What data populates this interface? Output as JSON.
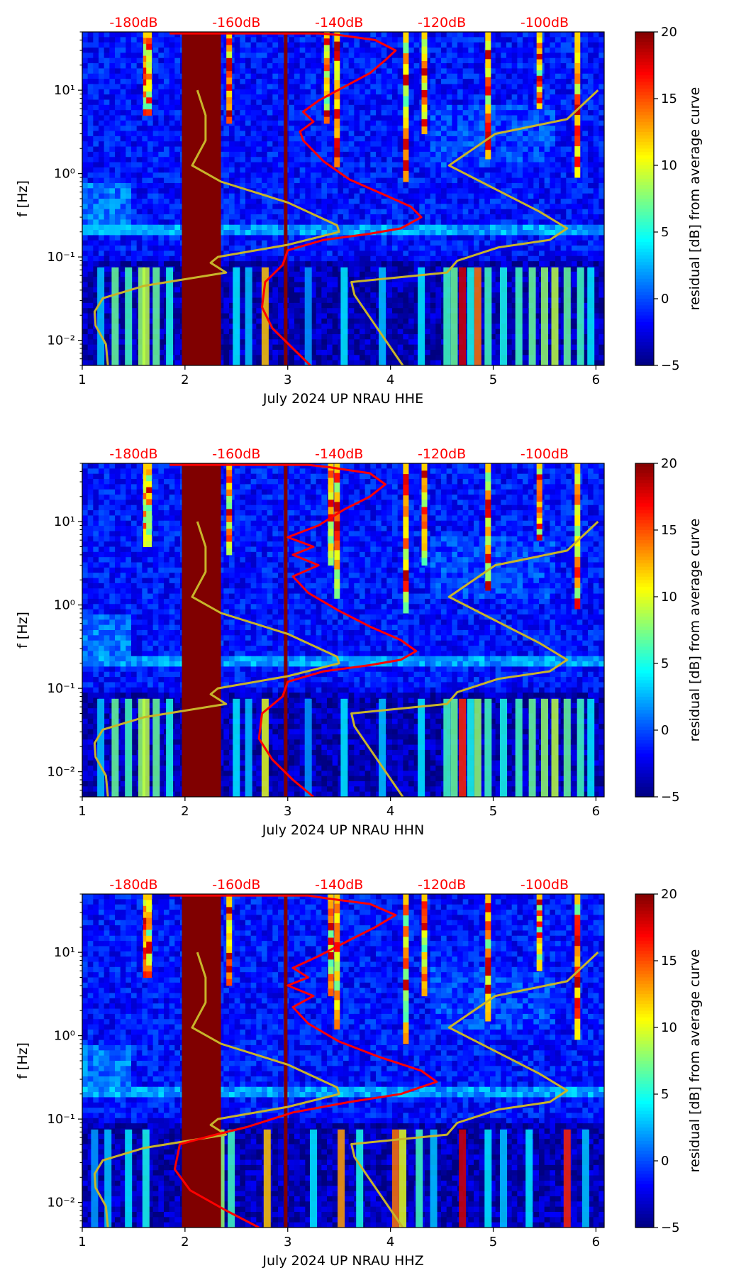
{
  "figure": {
    "colors": {
      "red_curve": "#ff0000",
      "yellow_curve": "#c8b42a",
      "dark_band": "#800000",
      "db_labels": "#ff0000"
    },
    "colormap": "jet"
  },
  "chart_data": [
    {
      "type": "heatmap",
      "xlabel": "July 2024 UP NRAU  HHE",
      "ylabel": "f [Hz]",
      "xlim": [
        1,
        6.08
      ],
      "ylim": [
        0.005,
        50
      ],
      "yscale": "log",
      "x_ticks": [
        "1",
        "2",
        "3",
        "4",
        "5",
        "6"
      ],
      "y_ticks": [
        "10⁻²",
        "10⁻¹",
        "10⁰",
        "10¹"
      ],
      "top_axis_labels": [
        "-180dB",
        "-160dB",
        "-140dB",
        "-120dB",
        "-100dB"
      ],
      "colorbar": {
        "label": "residual [dB] from average curve",
        "range": [
          -5,
          20
        ],
        "ticks": [
          "−5",
          "0",
          "5",
          "10",
          "15",
          "20"
        ]
      },
      "dark_band": [
        1.97,
        2.35
      ],
      "vertical_line_x": 2.98,
      "red_curve": {
        "x": [
          3.22,
          3.05,
          2.85,
          2.75,
          2.78,
          2.95,
          3.0,
          3.35,
          3.8,
          4.1,
          4.3,
          4.2,
          3.95,
          3.6,
          3.35,
          3.15,
          3.12,
          3.25,
          3.15,
          3.3,
          3.55,
          3.8,
          3.95,
          4.05,
          3.85,
          3.5,
          3.3,
          2.95
        ],
        "y": [
          0.005,
          0.008,
          0.014,
          0.025,
          0.05,
          0.08,
          0.12,
          0.16,
          0.19,
          0.22,
          0.3,
          0.4,
          0.55,
          0.85,
          1.4,
          2.5,
          3.2,
          4.2,
          5.5,
          7.5,
          11,
          16,
          23,
          30,
          40,
          46,
          48,
          48
        ]
      },
      "yellow_curve_left": {
        "x": [
          1.25,
          1.23,
          1.13,
          1.12,
          1.2,
          1.6,
          2.4,
          2.25,
          2.32,
          3.0,
          3.5,
          3.48,
          3.0,
          2.35,
          2.07,
          2.2,
          2.2,
          2.12
        ],
        "y": [
          0.005,
          0.009,
          0.015,
          0.022,
          0.032,
          0.045,
          0.065,
          0.085,
          0.1,
          0.14,
          0.2,
          0.24,
          0.45,
          0.8,
          1.25,
          2.5,
          5,
          10
        ]
      },
      "yellow_curve_right": {
        "x": [
          4.12,
          3.65,
          3.62,
          4.55,
          4.65,
          5.05,
          5.55,
          5.72,
          5.45,
          4.57,
          5.02,
          5.72,
          6.02
        ],
        "y": [
          0.005,
          0.035,
          0.05,
          0.065,
          0.09,
          0.13,
          0.16,
          0.22,
          0.35,
          1.25,
          3,
          4.5,
          10
        ]
      },
      "bright_columns": [
        {
          "x": 1.62,
          "top": 50,
          "bottom": 5
        },
        {
          "x": 1.65,
          "top": 50,
          "bottom": 5
        },
        {
          "x": 2.43,
          "top": 50,
          "bottom": 4
        },
        {
          "x": 3.38,
          "top": 50,
          "bottom": 4
        },
        {
          "x": 3.48,
          "top": 50,
          "bottom": 1.2
        },
        {
          "x": 4.15,
          "top": 50,
          "bottom": 0.8
        },
        {
          "x": 4.33,
          "top": 50,
          "bottom": 3
        },
        {
          "x": 4.95,
          "top": 50,
          "bottom": 1.5
        },
        {
          "x": 5.45,
          "top": 50,
          "bottom": 6
        },
        {
          "x": 5.82,
          "top": 50,
          "bottom": 0.9
        }
      ],
      "low_freq_columns": [
        {
          "x": 1.18,
          "v": 3
        },
        {
          "x": 1.32,
          "v": 7
        },
        {
          "x": 1.45,
          "v": 6
        },
        {
          "x": 1.58,
          "v": 8
        },
        {
          "x": 1.62,
          "v": 9
        },
        {
          "x": 1.72,
          "v": 7
        },
        {
          "x": 1.85,
          "v": 5
        },
        {
          "x": 2.5,
          "v": 4
        },
        {
          "x": 2.62,
          "v": 3
        },
        {
          "x": 2.78,
          "v": 12
        },
        {
          "x": 3.2,
          "v": 2
        },
        {
          "x": 3.55,
          "v": 4
        },
        {
          "x": 3.92,
          "v": 3
        },
        {
          "x": 4.3,
          "v": 4
        },
        {
          "x": 4.55,
          "v": 6
        },
        {
          "x": 4.62,
          "v": 7
        },
        {
          "x": 4.7,
          "v": 18
        },
        {
          "x": 4.78,
          "v": 5
        },
        {
          "x": 4.85,
          "v": 14
        },
        {
          "x": 4.95,
          "v": 6
        },
        {
          "x": 5.1,
          "v": 5
        },
        {
          "x": 5.25,
          "v": 6
        },
        {
          "x": 5.38,
          "v": 7
        },
        {
          "x": 5.5,
          "v": 8
        },
        {
          "x": 5.6,
          "v": 9
        },
        {
          "x": 5.72,
          "v": 7
        },
        {
          "x": 5.85,
          "v": 6
        },
        {
          "x": 5.95,
          "v": 4
        }
      ]
    },
    {
      "type": "heatmap",
      "xlabel": "July 2024 UP NRAU  HHN",
      "ylabel": "f [Hz]",
      "xlim": [
        1,
        6.08
      ],
      "ylim": [
        0.005,
        50
      ],
      "yscale": "log",
      "x_ticks": [
        "1",
        "2",
        "3",
        "4",
        "5",
        "6"
      ],
      "y_ticks": [
        "10⁻²",
        "10⁻¹",
        "10⁰",
        "10¹"
      ],
      "top_axis_labels": [
        "-180dB",
        "-160dB",
        "-140dB",
        "-120dB",
        "-100dB"
      ],
      "colorbar": {
        "label": "residual [dB] from average curve",
        "range": [
          -5,
          20
        ],
        "ticks": [
          "−5",
          "0",
          "5",
          "10",
          "15",
          "20"
        ]
      },
      "dark_band": [
        1.97,
        2.35
      ],
      "vertical_line_x": 2.98,
      "red_curve": {
        "x": [
          3.25,
          3.05,
          2.85,
          2.72,
          2.75,
          2.95,
          3.0,
          3.35,
          3.8,
          4.1,
          4.25,
          4.1,
          3.8,
          3.5,
          3.2,
          3.05,
          3.3,
          3.05,
          3.25,
          3.0,
          3.3,
          3.55,
          3.8,
          3.95,
          3.8,
          3.4,
          3.2,
          2.95
        ],
        "y": [
          0.005,
          0.008,
          0.014,
          0.025,
          0.05,
          0.08,
          0.12,
          0.16,
          0.19,
          0.22,
          0.28,
          0.38,
          0.55,
          0.85,
          1.4,
          2.2,
          3.0,
          4.0,
          5.0,
          6.5,
          9,
          14,
          20,
          28,
          38,
          45,
          48,
          48
        ]
      },
      "yellow_curve_left": {
        "x": [
          1.25,
          1.23,
          1.13,
          1.12,
          1.2,
          1.6,
          2.4,
          2.25,
          2.32,
          3.0,
          3.5,
          3.48,
          3.0,
          2.35,
          2.07,
          2.2,
          2.2,
          2.12
        ],
        "y": [
          0.005,
          0.009,
          0.015,
          0.022,
          0.032,
          0.045,
          0.065,
          0.085,
          0.1,
          0.14,
          0.2,
          0.24,
          0.45,
          0.8,
          1.25,
          2.5,
          5,
          10
        ]
      },
      "yellow_curve_right": {
        "x": [
          4.12,
          3.65,
          3.62,
          4.55,
          4.65,
          5.05,
          5.55,
          5.72,
          5.45,
          4.57,
          5.02,
          5.72,
          6.02
        ],
        "y": [
          0.005,
          0.035,
          0.05,
          0.065,
          0.09,
          0.13,
          0.16,
          0.22,
          0.35,
          1.25,
          3,
          4.5,
          10
        ]
      },
      "bright_columns": [
        {
          "x": 1.62,
          "top": 50,
          "bottom": 5
        },
        {
          "x": 1.65,
          "top": 50,
          "bottom": 5
        },
        {
          "x": 2.43,
          "top": 50,
          "bottom": 4
        },
        {
          "x": 3.42,
          "top": 50,
          "bottom": 3
        },
        {
          "x": 3.48,
          "top": 50,
          "bottom": 1.2
        },
        {
          "x": 4.15,
          "top": 50,
          "bottom": 0.8
        },
        {
          "x": 4.33,
          "top": 50,
          "bottom": 3
        },
        {
          "x": 4.95,
          "top": 50,
          "bottom": 1.5
        },
        {
          "x": 5.45,
          "top": 50,
          "bottom": 6
        },
        {
          "x": 5.82,
          "top": 50,
          "bottom": 0.9
        }
      ],
      "low_freq_columns": [
        {
          "x": 1.18,
          "v": 3
        },
        {
          "x": 1.32,
          "v": 7
        },
        {
          "x": 1.45,
          "v": 6
        },
        {
          "x": 1.58,
          "v": 8
        },
        {
          "x": 1.62,
          "v": 9
        },
        {
          "x": 1.72,
          "v": 7
        },
        {
          "x": 1.85,
          "v": 5
        },
        {
          "x": 2.5,
          "v": 4
        },
        {
          "x": 2.62,
          "v": 3
        },
        {
          "x": 2.78,
          "v": 10
        },
        {
          "x": 3.2,
          "v": 2
        },
        {
          "x": 3.55,
          "v": 4
        },
        {
          "x": 3.92,
          "v": 3
        },
        {
          "x": 4.3,
          "v": 4
        },
        {
          "x": 4.55,
          "v": 6
        },
        {
          "x": 4.62,
          "v": 7
        },
        {
          "x": 4.7,
          "v": 16
        },
        {
          "x": 4.78,
          "v": 5
        },
        {
          "x": 4.85,
          "v": 8
        },
        {
          "x": 4.95,
          "v": 6
        },
        {
          "x": 5.1,
          "v": 5
        },
        {
          "x": 5.25,
          "v": 6
        },
        {
          "x": 5.38,
          "v": 7
        },
        {
          "x": 5.5,
          "v": 8
        },
        {
          "x": 5.6,
          "v": 9
        },
        {
          "x": 5.72,
          "v": 7
        },
        {
          "x": 5.85,
          "v": 6
        },
        {
          "x": 5.95,
          "v": 4
        }
      ]
    },
    {
      "type": "heatmap",
      "xlabel": "July 2024 UP NRAU  HHZ",
      "ylabel": "f [Hz]",
      "xlim": [
        1,
        6.08
      ],
      "ylim": [
        0.005,
        50
      ],
      "yscale": "log",
      "x_ticks": [
        "1",
        "2",
        "3",
        "4",
        "5",
        "6"
      ],
      "y_ticks": [
        "10⁻²",
        "10⁻¹",
        "10⁰",
        "10¹"
      ],
      "top_axis_labels": [
        "-180dB",
        "-160dB",
        "-140dB",
        "-120dB",
        "-100dB"
      ],
      "colorbar": {
        "label": "residual [dB] from average curve",
        "range": [
          -5,
          20
        ],
        "ticks": [
          "−5",
          "0",
          "5",
          "10",
          "15",
          "20"
        ]
      },
      "dark_band": [
        1.97,
        2.35
      ],
      "vertical_line_x": 2.98,
      "red_curve": {
        "x": [
          2.72,
          2.4,
          2.05,
          1.9,
          1.95,
          2.3,
          2.6,
          3.05,
          3.6,
          4.1,
          4.45,
          4.3,
          3.9,
          3.5,
          3.2,
          3.05,
          3.25,
          3.0,
          3.2,
          3.05,
          3.3,
          3.6,
          3.85,
          4.05,
          3.8,
          3.4,
          3.2,
          2.95
        ],
        "y": [
          0.005,
          0.008,
          0.014,
          0.025,
          0.05,
          0.065,
          0.08,
          0.12,
          0.16,
          0.2,
          0.28,
          0.38,
          0.55,
          0.85,
          1.4,
          2.2,
          3.0,
          4.0,
          5.0,
          6.5,
          9,
          14,
          20,
          28,
          38,
          44,
          48,
          48
        ]
      },
      "yellow_curve_left": {
        "x": [
          1.25,
          1.23,
          1.13,
          1.12,
          1.2,
          1.6,
          2.4,
          2.25,
          2.32,
          3.0,
          3.5,
          3.48,
          3.0,
          2.35,
          2.07,
          2.2,
          2.2,
          2.12
        ],
        "y": [
          0.005,
          0.009,
          0.015,
          0.022,
          0.032,
          0.045,
          0.065,
          0.085,
          0.1,
          0.14,
          0.2,
          0.24,
          0.45,
          0.8,
          1.25,
          2.5,
          5,
          10
        ]
      },
      "yellow_curve_right": {
        "x": [
          4.12,
          3.65,
          3.62,
          4.55,
          4.65,
          5.05,
          5.55,
          5.72,
          5.45,
          4.57,
          5.02,
          5.72,
          6.02
        ],
        "y": [
          0.005,
          0.035,
          0.05,
          0.065,
          0.09,
          0.13,
          0.16,
          0.22,
          0.35,
          1.25,
          3,
          4.5,
          10
        ]
      },
      "bright_columns": [
        {
          "x": 1.62,
          "top": 50,
          "bottom": 5
        },
        {
          "x": 1.65,
          "top": 50,
          "bottom": 5
        },
        {
          "x": 2.43,
          "top": 50,
          "bottom": 4
        },
        {
          "x": 3.42,
          "top": 50,
          "bottom": 3
        },
        {
          "x": 3.48,
          "top": 50,
          "bottom": 1.2
        },
        {
          "x": 4.15,
          "top": 50,
          "bottom": 0.8
        },
        {
          "x": 4.33,
          "top": 50,
          "bottom": 3
        },
        {
          "x": 4.95,
          "top": 50,
          "bottom": 1.5
        },
        {
          "x": 5.45,
          "top": 50,
          "bottom": 6
        },
        {
          "x": 5.82,
          "top": 50,
          "bottom": 0.9
        }
      ],
      "low_freq_columns": [
        {
          "x": 1.12,
          "v": 2
        },
        {
          "x": 1.25,
          "v": 3
        },
        {
          "x": 1.45,
          "v": 4
        },
        {
          "x": 1.62,
          "v": 5
        },
        {
          "x": 2.35,
          "v": 8
        },
        {
          "x": 2.45,
          "v": 6
        },
        {
          "x": 2.8,
          "v": 12
        },
        {
          "x": 3.25,
          "v": 4
        },
        {
          "x": 3.52,
          "v": 13
        },
        {
          "x": 3.7,
          "v": 5
        },
        {
          "x": 4.05,
          "v": 14
        },
        {
          "x": 4.12,
          "v": 10
        },
        {
          "x": 4.28,
          "v": 6
        },
        {
          "x": 4.42,
          "v": 3
        },
        {
          "x": 4.7,
          "v": 18
        },
        {
          "x": 4.95,
          "v": 4
        },
        {
          "x": 5.1,
          "v": 3
        },
        {
          "x": 5.35,
          "v": 4
        },
        {
          "x": 5.72,
          "v": 16
        },
        {
          "x": 5.9,
          "v": 3
        }
      ]
    }
  ]
}
